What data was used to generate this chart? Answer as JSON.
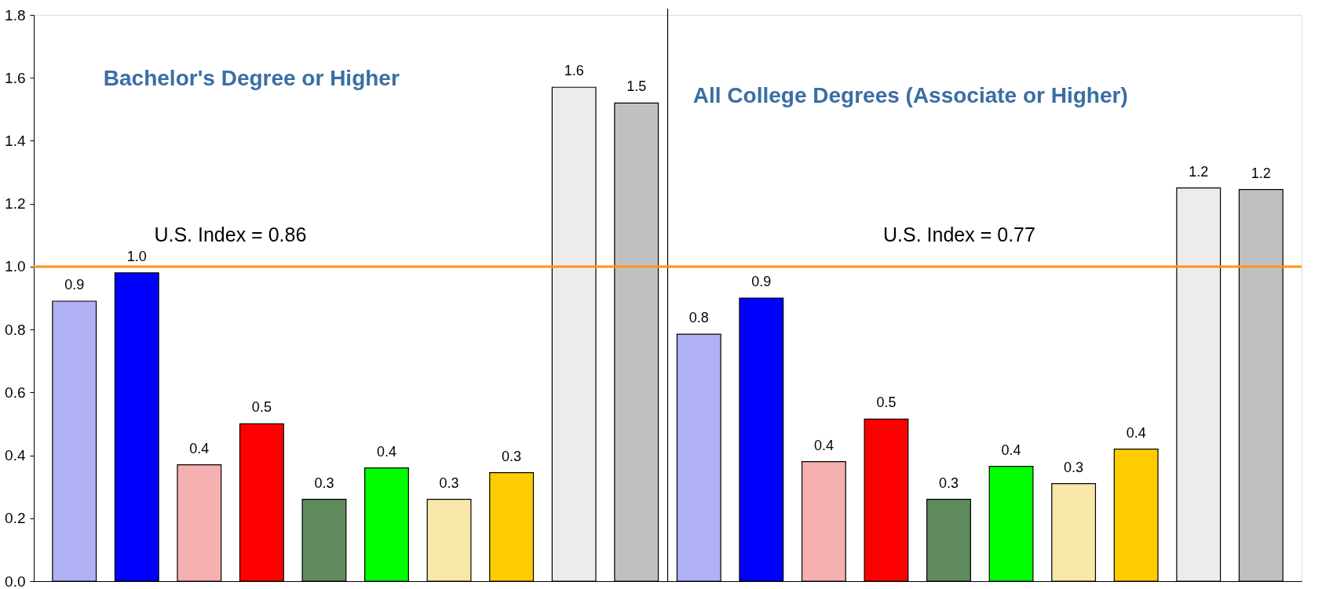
{
  "chart_data": {
    "type": "bar",
    "title": "Bachelor's Degree or Higher",
    "subtitle": "All College Degrees (Associate or Higher)",
    "categories": [
      null,
      null,
      null,
      null,
      null,
      null,
      null,
      null,
      null,
      null,
      null,
      null,
      null,
      null,
      null,
      null,
      null,
      null,
      null,
      null
    ],
    "values": [
      0.89,
      0.98,
      0.37,
      0.5,
      0.26,
      0.36,
      0.26,
      0.345,
      1.57,
      1.52,
      0.785,
      0.9,
      0.38,
      0.515,
      0.26,
      0.365,
      0.31,
      0.42,
      1.25,
      1.245
    ],
    "value_labels": [
      "0.9",
      "1.0",
      "0.4",
      "0.5",
      "0.3",
      "0.4",
      "0.3",
      "0.3",
      "1.6",
      "1.5",
      "0.8",
      "0.9",
      "0.4",
      "0.5",
      "0.3",
      "0.4",
      "0.3",
      "0.4",
      "1.2",
      "1.2"
    ],
    "colors": [
      "#b0b0f5",
      "#0000ff",
      "#f5b0b0",
      "#ff0000",
      "#5e8a5e",
      "#00ff00",
      "#f7e7a8",
      "#ffcc00",
      "#ececec",
      "#c0c0c0",
      "#b0b0f5",
      "#0000ff",
      "#f5b0b0",
      "#ff0000",
      "#5e8a5e",
      "#00ff00",
      "#f7e7a8",
      "#ffcc00",
      "#ececec",
      "#c0c0c0"
    ],
    "ylim": [
      0,
      1.8
    ],
    "yticks": [
      {
        "value": 0,
        "label": "0.0"
      },
      0.2,
      0.4,
      0.6,
      0.8,
      {
        "value": 1,
        "label": "1.0"
      },
      1.2,
      1.4,
      1.6,
      1.8
    ],
    "ref_lines": [
      {
        "axis": "y",
        "value": 1.0,
        "color": "#f7941d"
      }
    ],
    "annotations": [
      "U.S. Index = 0.86",
      "U.S. Index = 0.77"
    ],
    "tick_labels": "y",
    "grid": false
  }
}
